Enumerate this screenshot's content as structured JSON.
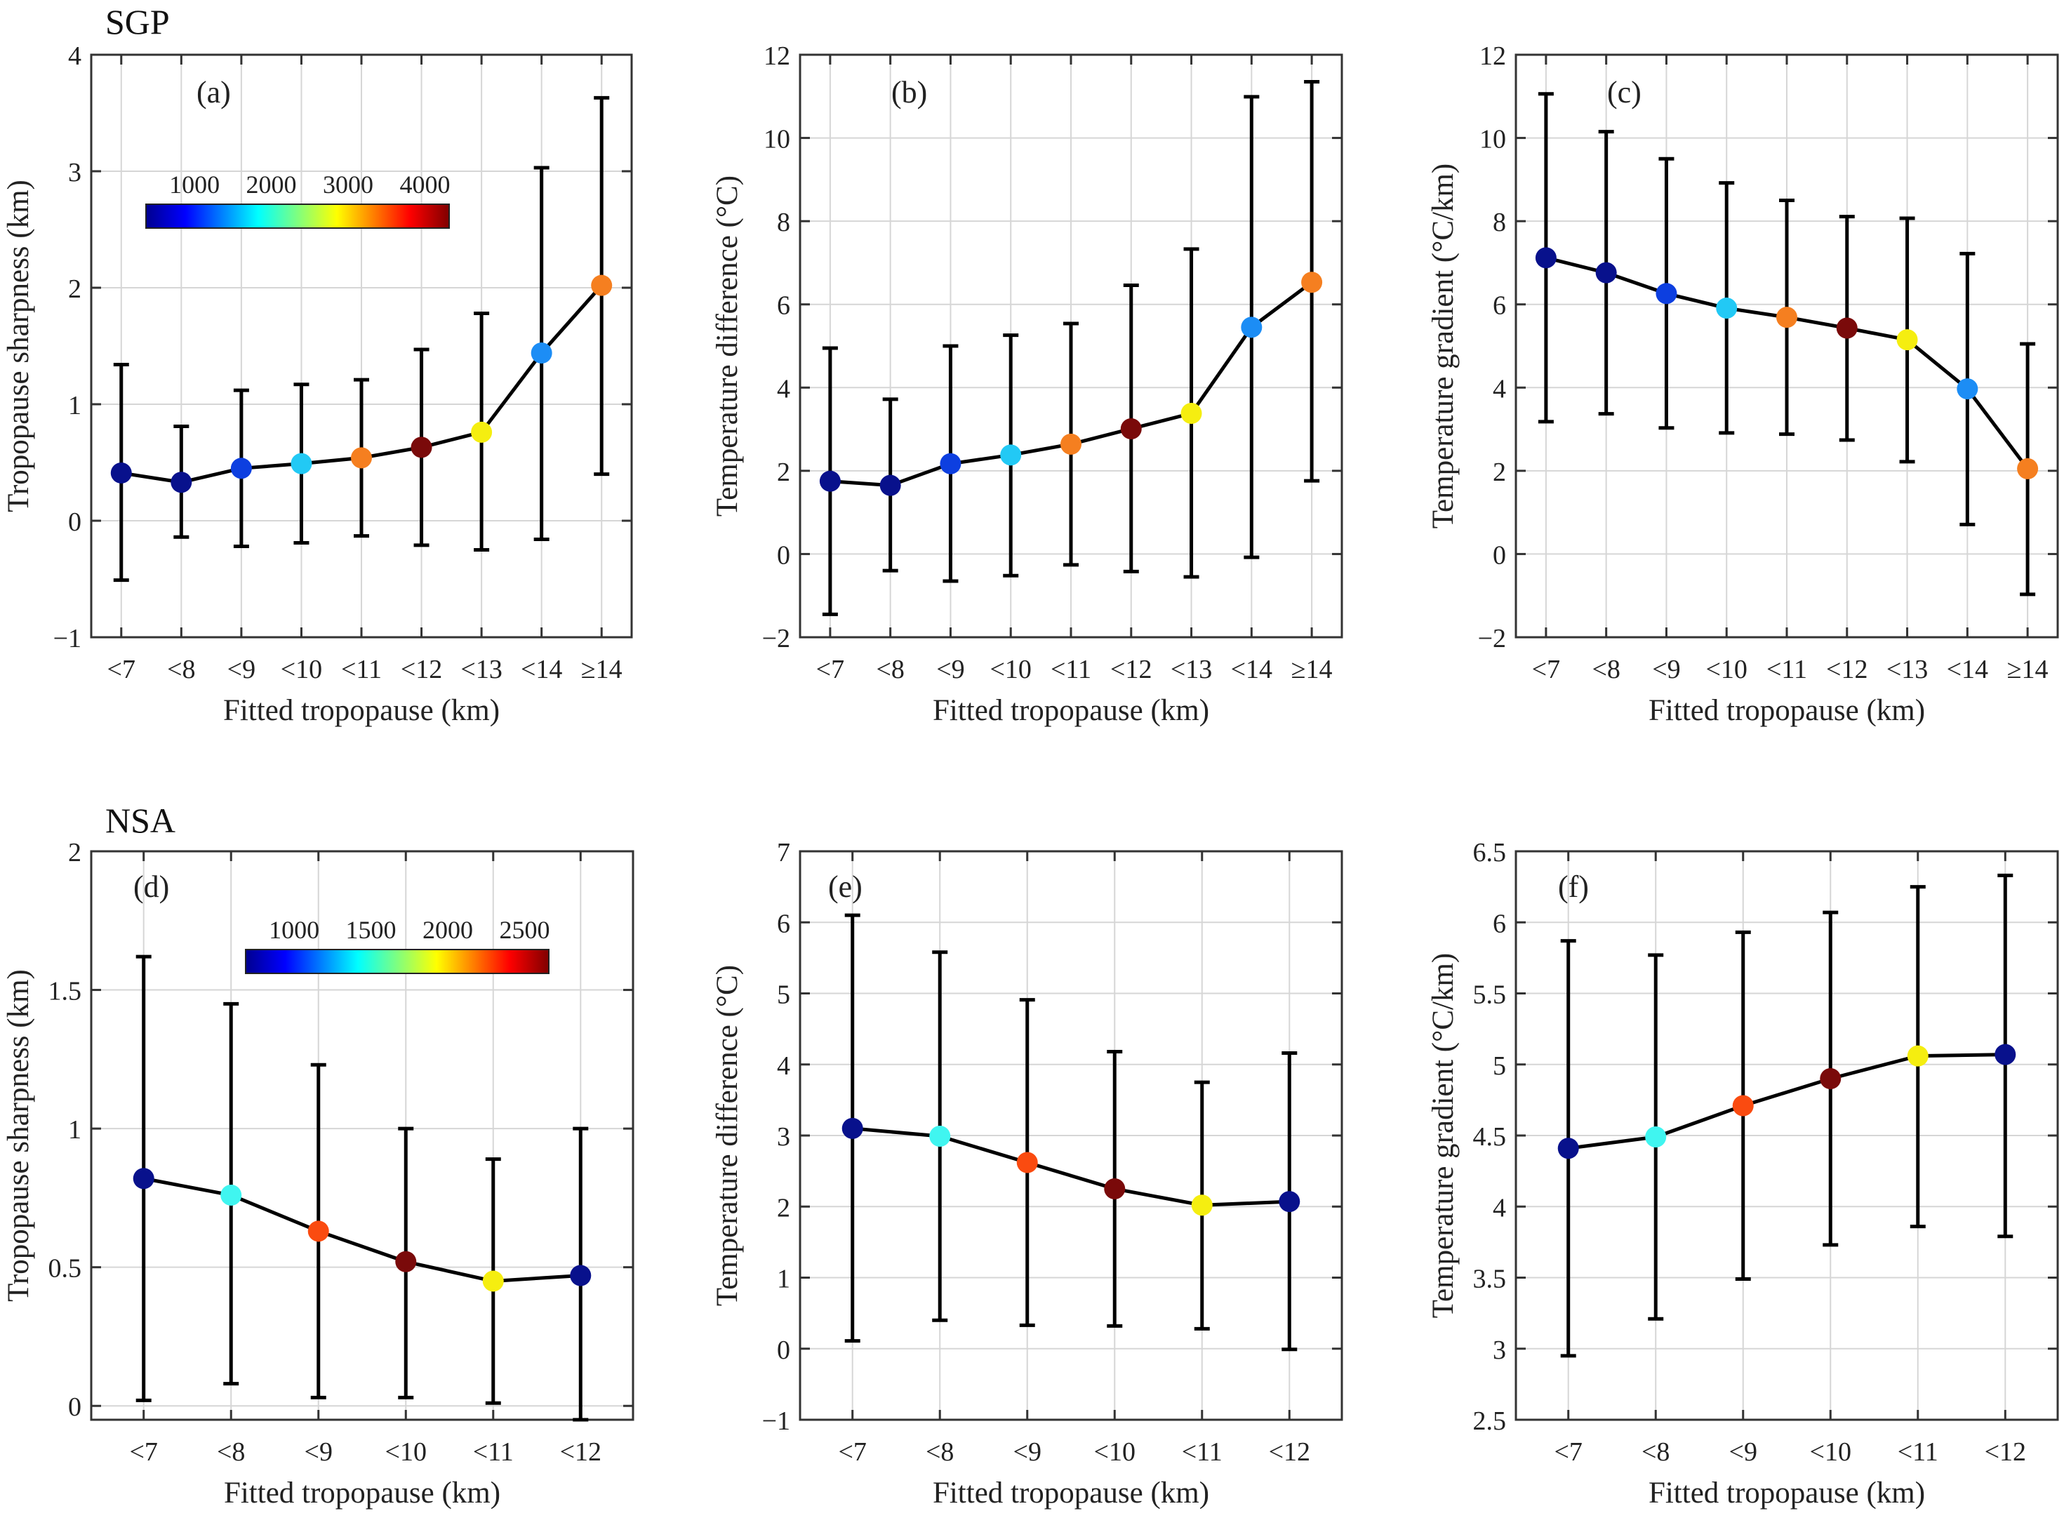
{
  "figure": {
    "site_labels": [
      "SGP",
      "NSA"
    ]
  },
  "colors": {
    "axis": "#333333",
    "grid": "#d6d6d6",
    "line": "#000000"
  },
  "chart_data": [
    {
      "id": "a",
      "panel_label": "(a)",
      "type": "line",
      "xlabel": "Fitted tropopause (km)",
      "ylabel": "Tropopause sharpness (km)",
      "categories": [
        "<7",
        "<8",
        "<9",
        "<10",
        "<11",
        "<12",
        "<13",
        "<14",
        "≥14"
      ],
      "values": [
        0.41,
        0.33,
        0.45,
        0.49,
        0.54,
        0.63,
        0.76,
        1.44,
        2.02
      ],
      "err_low": [
        -0.51,
        -0.14,
        -0.22,
        -0.19,
        -0.13,
        -0.21,
        -0.25,
        -0.16,
        0.4
      ],
      "err_high": [
        1.34,
        0.81,
        1.12,
        1.17,
        1.21,
        1.47,
        1.78,
        3.03,
        3.63
      ],
      "point_colors": [
        "#08118c",
        "#08118c",
        "#0d3fe0",
        "#22c9f5",
        "#f57f20",
        "#7a0a0a",
        "#f5ee10",
        "#1c8df5",
        "#f57f20"
      ],
      "ylim": [
        -1,
        4
      ],
      "yticks": [
        -1,
        0,
        1,
        2,
        3,
        4
      ],
      "colorbar": {
        "ticks": [
          "1000",
          "2000",
          "3000",
          "4000"
        ]
      }
    },
    {
      "id": "b",
      "panel_label": "(b)",
      "type": "line",
      "xlabel": "Fitted tropopause (km)",
      "ylabel": "Temperature difference (°C)",
      "categories": [
        "<7",
        "<8",
        "<9",
        "<10",
        "<11",
        "<12",
        "<13",
        "<14",
        "≥14"
      ],
      "values": [
        1.75,
        1.65,
        2.17,
        2.38,
        2.64,
        3.01,
        3.38,
        5.45,
        6.53
      ],
      "err_low": [
        -1.45,
        -0.4,
        -0.65,
        -0.52,
        -0.26,
        -0.42,
        -0.55,
        -0.08,
        1.76
      ],
      "err_high": [
        4.95,
        3.72,
        5.0,
        5.26,
        5.54,
        6.46,
        7.33,
        10.99,
        11.35
      ],
      "point_colors": [
        "#08118c",
        "#08118c",
        "#0d3fe0",
        "#22c9f5",
        "#f57f20",
        "#7a0a0a",
        "#f5ee10",
        "#1c8df5",
        "#f57f20"
      ],
      "ylim": [
        -2,
        12
      ],
      "yticks": [
        -2,
        0,
        2,
        4,
        6,
        8,
        10,
        12
      ]
    },
    {
      "id": "c",
      "panel_label": "(c)",
      "type": "line",
      "xlabel": "Fitted tropopause (km)",
      "ylabel": "Temperature gradient (°C/km)",
      "categories": [
        "<7",
        "<8",
        "<9",
        "<10",
        "<11",
        "<12",
        "<13",
        "<14",
        "≥14"
      ],
      "values": [
        7.12,
        6.76,
        6.26,
        5.91,
        5.69,
        5.43,
        5.15,
        3.97,
        2.05
      ],
      "err_low": [
        3.18,
        3.37,
        3.03,
        2.91,
        2.88,
        2.74,
        2.22,
        0.71,
        -0.97
      ],
      "err_high": [
        11.06,
        10.15,
        9.5,
        8.92,
        8.5,
        8.11,
        8.07,
        7.22,
        5.05
      ],
      "point_colors": [
        "#08118c",
        "#08118c",
        "#0d3fe0",
        "#22c9f5",
        "#f57f20",
        "#7a0a0a",
        "#f5ee10",
        "#1c8df5",
        "#f57f20"
      ],
      "ylim": [
        -2,
        12
      ],
      "yticks": [
        -2,
        0,
        2,
        4,
        6,
        8,
        10,
        12
      ]
    },
    {
      "id": "d",
      "panel_label": "(d)",
      "type": "line",
      "xlabel": "Fitted tropopause (km)",
      "ylabel": "Tropopause sharpness (km)",
      "categories": [
        "<7",
        "<8",
        "<9",
        "<10",
        "<11",
        "<12"
      ],
      "values": [
        0.82,
        0.76,
        0.63,
        0.52,
        0.45,
        0.47
      ],
      "err_low": [
        0.02,
        0.08,
        0.03,
        0.03,
        0.01,
        -0.05
      ],
      "err_high": [
        1.62,
        1.45,
        1.23,
        1.0,
        0.89,
        1.0
      ],
      "point_colors": [
        "#08118c",
        "#40f5f0",
        "#fa4b10",
        "#7a0a0a",
        "#f5ee10",
        "#08118c"
      ],
      "ylim": [
        -0.05,
        2
      ],
      "yticks": [
        0,
        0.5,
        1,
        1.5,
        2
      ],
      "colorbar": {
        "ticks": [
          "1000",
          "1500",
          "2000",
          "2500"
        ]
      }
    },
    {
      "id": "e",
      "panel_label": "(e)",
      "type": "line",
      "xlabel": "Fitted tropopause (km)",
      "ylabel": "Temperature difference (°C)",
      "categories": [
        "<7",
        "<8",
        "<9",
        "<10",
        "<11",
        "<12"
      ],
      "values": [
        3.1,
        2.99,
        2.62,
        2.25,
        2.02,
        2.07
      ],
      "err_low": [
        0.11,
        0.4,
        0.33,
        0.32,
        0.28,
        -0.01
      ],
      "err_high": [
        6.1,
        5.58,
        4.91,
        4.18,
        3.75,
        4.16
      ],
      "point_colors": [
        "#08118c",
        "#40f5f0",
        "#fa4b10",
        "#7a0a0a",
        "#f5ee10",
        "#08118c"
      ],
      "ylim": [
        -1,
        7
      ],
      "yticks": [
        -1,
        0,
        1,
        2,
        3,
        4,
        5,
        6,
        7
      ]
    },
    {
      "id": "f",
      "panel_label": "(f)",
      "type": "line",
      "xlabel": "Fitted tropopause (km)",
      "ylabel": "Temperature gradient (°C/km)",
      "categories": [
        "<7",
        "<8",
        "<9",
        "<10",
        "<11",
        "<12"
      ],
      "values": [
        4.41,
        4.49,
        4.71,
        4.9,
        5.06,
        5.07
      ],
      "err_low": [
        2.95,
        3.21,
        3.49,
        3.73,
        3.86,
        3.79
      ],
      "err_high": [
        5.87,
        5.77,
        5.93,
        6.07,
        6.25,
        6.33
      ],
      "point_colors": [
        "#08118c",
        "#40f5f0",
        "#fa4b10",
        "#7a0a0a",
        "#f5ee10",
        "#08118c"
      ],
      "ylim": [
        2.5,
        6.5
      ],
      "yticks": [
        2.5,
        3,
        3.5,
        4,
        4.5,
        5,
        5.5,
        6,
        6.5
      ]
    }
  ]
}
